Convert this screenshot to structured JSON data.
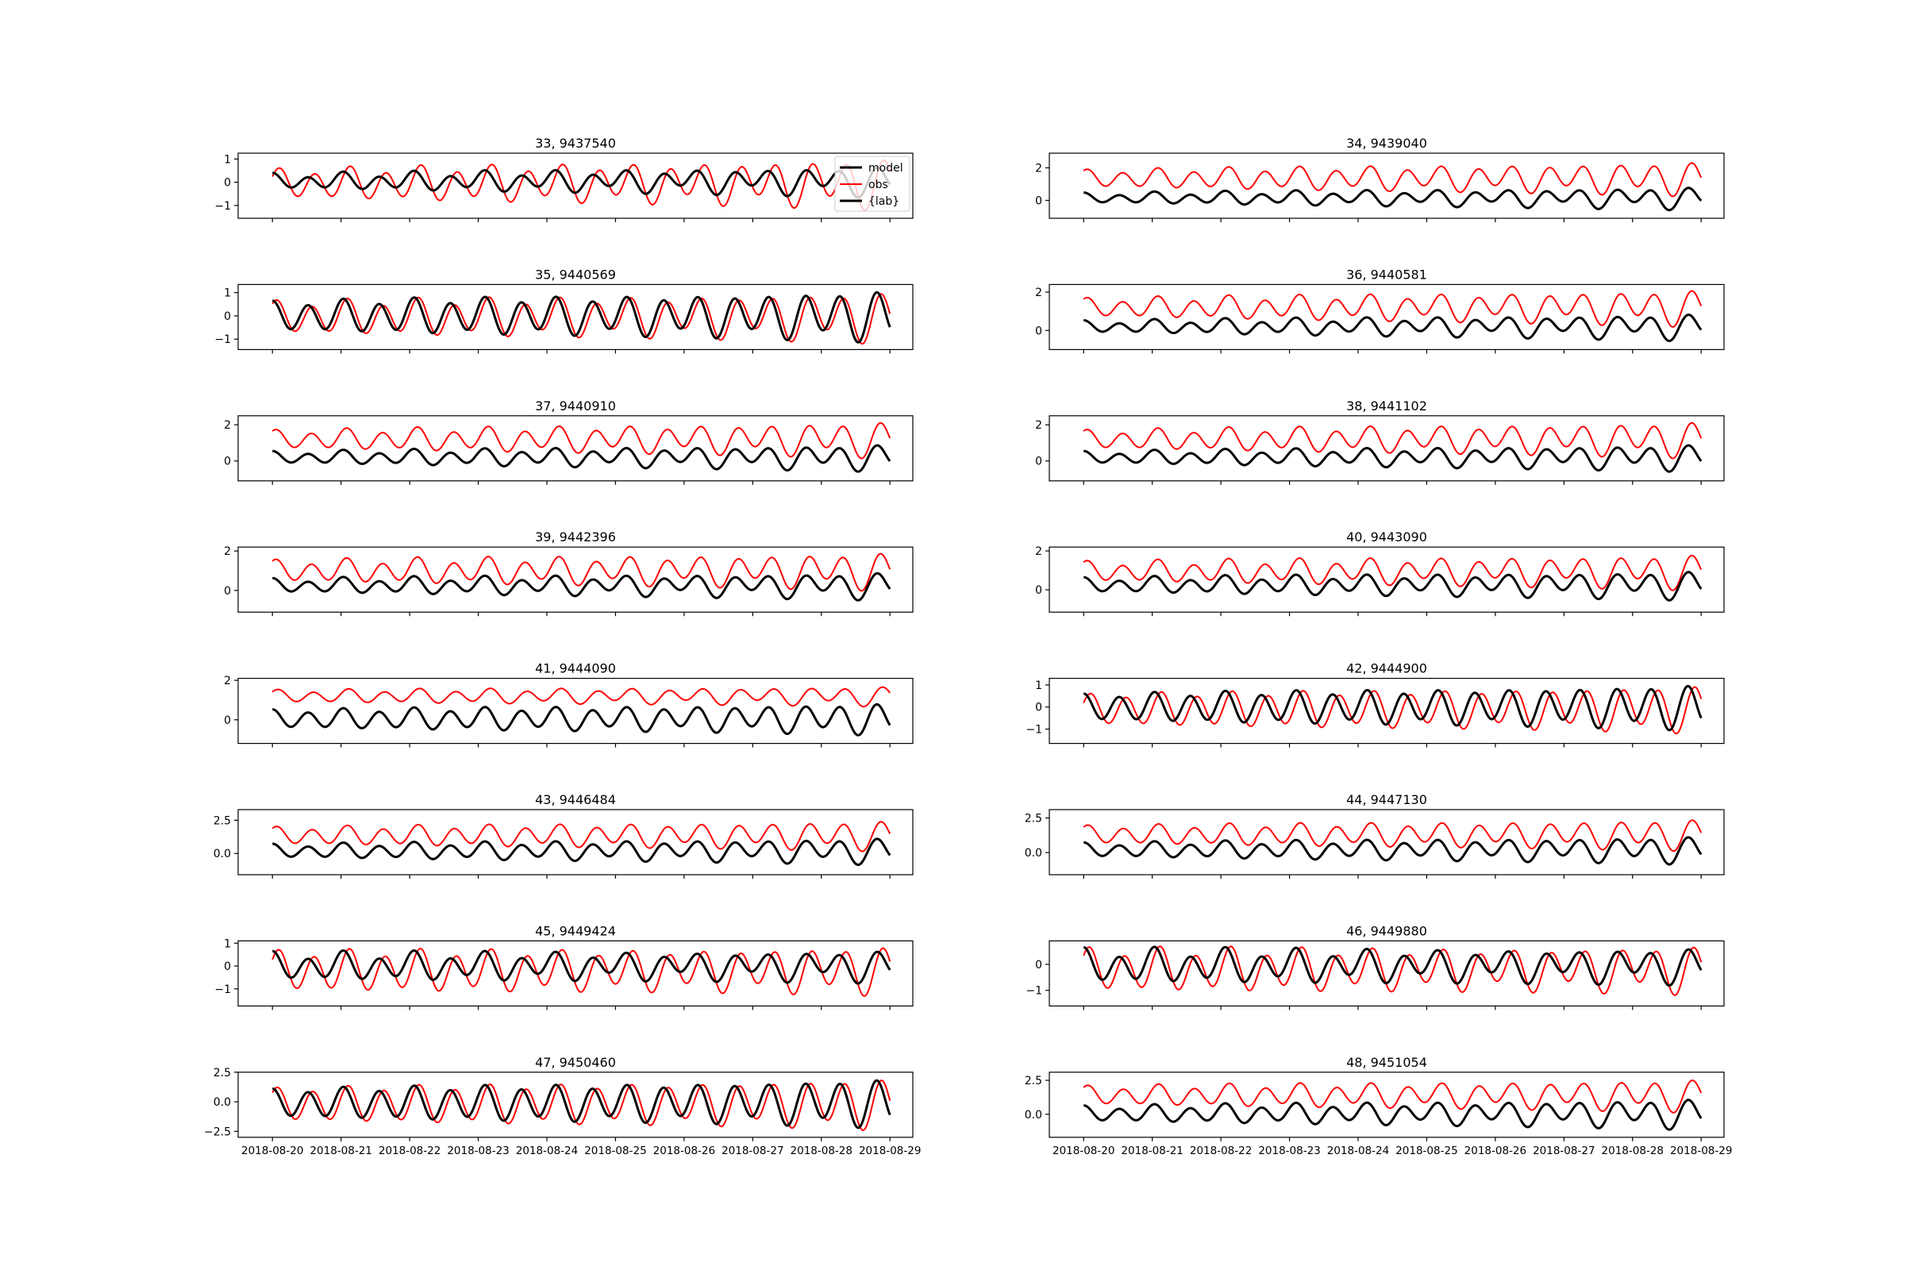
{
  "figure": {
    "colors": {
      "model": "#000000",
      "obs": "#ff0000",
      "axes": "#000000",
      "background": "#ffffff"
    },
    "legend": {
      "placement": "upper-right of first panel",
      "entries": [
        {
          "label": "model",
          "color": "#000000"
        },
        {
          "label": "obs",
          "color": "#ff0000"
        },
        {
          "label": "{lab}",
          "color": "#000000"
        }
      ]
    },
    "x_tick_labels": [
      "2018-08-20",
      "2018-08-21",
      "2018-08-22",
      "2018-08-23",
      "2018-08-24",
      "2018-08-25",
      "2018-08-26",
      "2018-08-27",
      "2018-08-28",
      "2018-08-29"
    ]
  },
  "chart_data": [
    {
      "type": "line",
      "title": "33, 9437540",
      "x_range": [
        "2018-08-19T12:00",
        "2018-08-29T08:00"
      ],
      "ylim": [
        -1.55,
        1.25
      ],
      "yticks": [
        1,
        0,
        -1
      ],
      "ytick_labels": [
        "1",
        "0",
        "−1"
      ],
      "series": [
        {
          "name": "model",
          "color": "#000000",
          "mean": 0.05,
          "m2_amp": 0.55,
          "growth": 0.6,
          "diurnal": 0.25,
          "phase_days": 0.0
        },
        {
          "name": "obs",
          "color": "#ff0000",
          "mean": -0.05,
          "m2_amp": 1.0,
          "growth": 0.55,
          "diurnal": 0.3,
          "phase_days": 0.1
        }
      ]
    },
    {
      "type": "line",
      "title": "34, 9439040",
      "x_range": [
        "2018-08-19T12:00",
        "2018-08-29T08:00"
      ],
      "ylim": [
        -1.1,
        2.9
      ],
      "yticks": [
        2,
        0
      ],
      "ytick_labels": [
        "2",
        "0"
      ],
      "series": [
        {
          "name": "model",
          "color": "#000000",
          "mean": 0.15,
          "m2_amp": 0.6,
          "growth": 0.65,
          "diurnal": 0.25,
          "phase_days": 0.0
        },
        {
          "name": "obs",
          "color": "#ff0000",
          "mean": 1.35,
          "m2_amp": 0.95,
          "growth": 0.6,
          "diurnal": 0.3,
          "phase_days": 0.05
        }
      ]
    },
    {
      "type": "line",
      "title": "35, 9440569",
      "x_range": [
        "2018-08-19T12:00",
        "2018-08-29T08:00"
      ],
      "ylim": [
        -1.45,
        1.35
      ],
      "yticks": [
        1,
        0,
        -1
      ],
      "ytick_labels": [
        "1",
        "0",
        "−1"
      ],
      "series": [
        {
          "name": "model",
          "color": "#000000",
          "mean": 0.0,
          "m2_amp": 1.05,
          "growth": 0.55,
          "diurnal": 0.25,
          "phase_days": 0.0
        },
        {
          "name": "obs",
          "color": "#ff0000",
          "mean": -0.05,
          "m2_amp": 1.0,
          "growth": 0.5,
          "diurnal": 0.3,
          "phase_days": 0.06
        }
      ]
    },
    {
      "type": "line",
      "title": "36, 9440581",
      "x_range": [
        "2018-08-19T12:00",
        "2018-08-29T08:00"
      ],
      "ylim": [
        -1.0,
        2.4
      ],
      "yticks": [
        2,
        0
      ],
      "ytick_labels": [
        "2",
        "0"
      ],
      "series": [
        {
          "name": "model",
          "color": "#000000",
          "mean": 0.2,
          "m2_amp": 0.6,
          "growth": 0.65,
          "diurnal": 0.25,
          "phase_days": 0.0
        },
        {
          "name": "obs",
          "color": "#ff0000",
          "mean": 1.2,
          "m2_amp": 0.85,
          "growth": 0.6,
          "diurnal": 0.3,
          "phase_days": 0.05
        }
      ]
    },
    {
      "type": "line",
      "title": "37, 9440910",
      "x_range": [
        "2018-08-19T12:00",
        "2018-08-29T08:00"
      ],
      "ylim": [
        -1.1,
        2.5
      ],
      "yticks": [
        2,
        0
      ],
      "ytick_labels": [
        "2",
        "0"
      ],
      "series": [
        {
          "name": "model",
          "color": "#000000",
          "mean": 0.2,
          "m2_amp": 0.65,
          "growth": 0.65,
          "diurnal": 0.25,
          "phase_days": 0.0
        },
        {
          "name": "obs",
          "color": "#ff0000",
          "mean": 1.2,
          "m2_amp": 0.9,
          "growth": 0.6,
          "diurnal": 0.3,
          "phase_days": 0.05
        }
      ]
    },
    {
      "type": "line",
      "title": "38, 9441102",
      "x_range": [
        "2018-08-19T12:00",
        "2018-08-29T08:00"
      ],
      "ylim": [
        -1.1,
        2.5
      ],
      "yticks": [
        2,
        0
      ],
      "ytick_labels": [
        "2",
        "0"
      ],
      "series": [
        {
          "name": "model",
          "color": "#000000",
          "mean": 0.2,
          "m2_amp": 0.65,
          "growth": 0.65,
          "diurnal": 0.25,
          "phase_days": 0.0
        },
        {
          "name": "obs",
          "color": "#ff0000",
          "mean": 1.2,
          "m2_amp": 0.9,
          "growth": 0.6,
          "diurnal": 0.3,
          "phase_days": 0.05
        }
      ]
    },
    {
      "type": "line",
      "title": "39, 9442396",
      "x_range": [
        "2018-08-19T12:00",
        "2018-08-29T08:00"
      ],
      "ylim": [
        -1.1,
        2.2
      ],
      "yticks": [
        2,
        0
      ],
      "ytick_labels": [
        "2",
        "0"
      ],
      "series": [
        {
          "name": "model",
          "color": "#000000",
          "mean": 0.25,
          "m2_amp": 0.6,
          "growth": 0.6,
          "diurnal": 0.25,
          "phase_days": 0.0
        },
        {
          "name": "obs",
          "color": "#ff0000",
          "mean": 1.0,
          "m2_amp": 0.85,
          "growth": 0.55,
          "diurnal": 0.3,
          "phase_days": 0.05
        }
      ]
    },
    {
      "type": "line",
      "title": "40, 9443090",
      "x_range": [
        "2018-08-19T12:00",
        "2018-08-29T08:00"
      ],
      "ylim": [
        -1.15,
        2.2
      ],
      "yticks": [
        2,
        0
      ],
      "ytick_labels": [
        "2",
        "0"
      ],
      "series": [
        {
          "name": "model",
          "color": "#000000",
          "mean": 0.25,
          "m2_amp": 0.65,
          "growth": 0.6,
          "diurnal": 0.25,
          "phase_days": 0.0
        },
        {
          "name": "obs",
          "color": "#ff0000",
          "mean": 0.95,
          "m2_amp": 0.8,
          "growth": 0.55,
          "diurnal": 0.3,
          "phase_days": 0.05
        }
      ]
    },
    {
      "type": "line",
      "title": "41, 9444090",
      "x_range": [
        "2018-08-19T12:00",
        "2018-08-29T08:00"
      ],
      "ylim": [
        -1.2,
        2.1
      ],
      "yticks": [
        2,
        0
      ],
      "ytick_labels": [
        "2",
        "0"
      ],
      "series": [
        {
          "name": "model",
          "color": "#000000",
          "mean": 0.05,
          "m2_amp": 0.75,
          "growth": 0.55,
          "diurnal": 0.2,
          "phase_days": 0.0
        },
        {
          "name": "obs",
          "color": "#ff0000",
          "mean": 1.2,
          "m2_amp": 0.45,
          "growth": 0.5,
          "diurnal": 0.15,
          "phase_days": 0.08
        }
      ]
    },
    {
      "type": "line",
      "title": "42, 9444900",
      "x_range": [
        "2018-08-19T12:00",
        "2018-08-29T08:00"
      ],
      "ylim": [
        -1.65,
        1.3
      ],
      "yticks": [
        1,
        0,
        -1
      ],
      "ytick_labels": [
        "1",
        "0",
        "−1"
      ],
      "series": [
        {
          "name": "model",
          "color": "#000000",
          "mean": 0.0,
          "m2_amp": 1.0,
          "growth": 0.55,
          "diurnal": 0.2,
          "phase_days": 0.0
        },
        {
          "name": "obs",
          "color": "#ff0000",
          "mean": -0.1,
          "m2_amp": 1.05,
          "growth": 0.5,
          "diurnal": 0.2,
          "phase_days": 0.1
        }
      ]
    },
    {
      "type": "line",
      "title": "43, 9446484",
      "x_range": [
        "2018-08-19T12:00",
        "2018-08-29T08:00"
      ],
      "ylim": [
        -1.6,
        3.3
      ],
      "yticks": [
        2.5,
        0.0
      ],
      "ytick_labels": [
        "2.5",
        "0.0"
      ],
      "series": [
        {
          "name": "model",
          "color": "#000000",
          "mean": 0.2,
          "m2_amp": 0.9,
          "growth": 0.6,
          "diurnal": 0.3,
          "phase_days": 0.0
        },
        {
          "name": "obs",
          "color": "#ff0000",
          "mean": 1.35,
          "m2_amp": 1.05,
          "growth": 0.55,
          "diurnal": 0.3,
          "phase_days": 0.06
        }
      ]
    },
    {
      "type": "line",
      "title": "44, 9447130",
      "x_range": [
        "2018-08-19T12:00",
        "2018-08-29T08:00"
      ],
      "ylim": [
        -1.6,
        3.1
      ],
      "yticks": [
        2.5,
        0.0
      ],
      "ytick_labels": [
        "2.5",
        "0.0"
      ],
      "series": [
        {
          "name": "model",
          "color": "#000000",
          "mean": 0.2,
          "m2_amp": 0.9,
          "growth": 0.6,
          "diurnal": 0.3,
          "phase_days": 0.0
        },
        {
          "name": "obs",
          "color": "#ff0000",
          "mean": 1.3,
          "m2_amp": 1.05,
          "growth": 0.55,
          "diurnal": 0.3,
          "phase_days": 0.06
        }
      ]
    },
    {
      "type": "line",
      "title": "45, 9449424",
      "x_range": [
        "2018-08-19T12:00",
        "2018-08-29T08:00"
      ],
      "ylim": [
        -1.75,
        1.1
      ],
      "yticks": [
        1,
        0,
        -1
      ],
      "ytick_labels": [
        "1",
        "0",
        "−1"
      ],
      "series": [
        {
          "name": "model",
          "color": "#000000",
          "mean": 0.0,
          "m2_amp": 0.6,
          "growth": 0.3,
          "diurnal": 0.25,
          "phase_days": 0.0
        },
        {
          "name": "obs",
          "color": "#ff0000",
          "mean": -0.2,
          "m2_amp": 1.0,
          "growth": 0.35,
          "diurnal": 0.25,
          "phase_days": 0.09
        }
      ]
    },
    {
      "type": "line",
      "title": "46, 9449880",
      "x_range": [
        "2018-08-19T12:00",
        "2018-08-29T08:00"
      ],
      "ylim": [
        -1.6,
        0.9
      ],
      "yticks": [
        0,
        -1
      ],
      "ytick_labels": [
        "0",
        "−1"
      ],
      "series": [
        {
          "name": "model",
          "color": "#000000",
          "mean": -0.05,
          "m2_amp": 0.6,
          "growth": 0.25,
          "diurnal": 0.25,
          "phase_days": 0.0
        },
        {
          "name": "obs",
          "color": "#ff0000",
          "mean": -0.2,
          "m2_amp": 0.85,
          "growth": 0.3,
          "diurnal": 0.25,
          "phase_days": 0.08
        }
      ]
    },
    {
      "type": "line",
      "title": "47, 9450460",
      "x_range": [
        "2018-08-19T12:00",
        "2018-08-29T08:00"
      ],
      "ylim": [
        -3.0,
        2.5
      ],
      "yticks": [
        2.5,
        0.0,
        -2.5
      ],
      "ytick_labels": [
        "2.5",
        "0.0",
        "−2.5"
      ],
      "series": [
        {
          "name": "model",
          "color": "#000000",
          "mean": -0.1,
          "m2_amp": 2.0,
          "growth": 0.55,
          "diurnal": 0.4,
          "phase_days": 0.0
        },
        {
          "name": "obs",
          "color": "#ff0000",
          "mean": -0.2,
          "m2_amp": 2.1,
          "growth": 0.5,
          "diurnal": 0.4,
          "phase_days": 0.07
        }
      ]
    },
    {
      "type": "line",
      "title": "48, 9451054",
      "x_range": [
        "2018-08-19T12:00",
        "2018-08-29T08:00"
      ],
      "ylim": [
        -1.7,
        3.1
      ],
      "yticks": [
        2.5,
        0.0
      ],
      "ytick_labels": [
        "2.5",
        "0.0"
      ],
      "series": [
        {
          "name": "model",
          "color": "#000000",
          "mean": 0.05,
          "m2_amp": 1.0,
          "growth": 0.6,
          "diurnal": 0.35,
          "phase_days": 0.0
        },
        {
          "name": "obs",
          "color": "#ff0000",
          "mean": 1.4,
          "m2_amp": 1.1,
          "growth": 0.55,
          "diurnal": 0.35,
          "phase_days": 0.06
        }
      ]
    }
  ]
}
